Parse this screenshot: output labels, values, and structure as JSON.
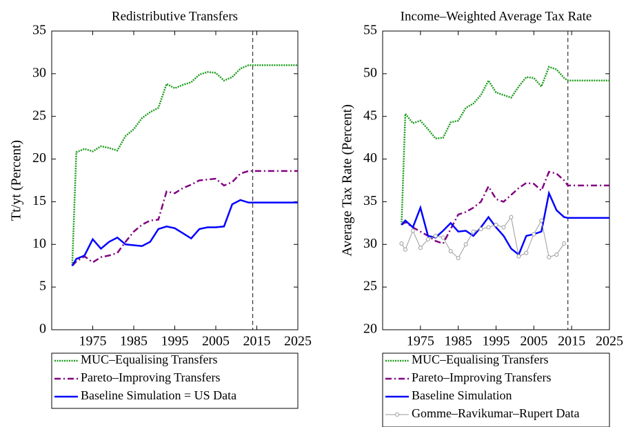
{
  "chart_data": [
    {
      "type": "line",
      "title": "Redistributive Transfers",
      "ylabel": "Tt/yt (Percent)",
      "x": [
        1970,
        1971,
        1973,
        1975,
        1977,
        1979,
        1981,
        1983,
        1985,
        1987,
        1989,
        1991,
        1993,
        1995,
        1997,
        1999,
        2001,
        2003,
        2005,
        2007,
        2009,
        2011,
        2013,
        2014,
        2025
      ],
      "xlim": [
        1965,
        2025
      ],
      "xticks": [
        1975,
        1985,
        1995,
        2005,
        2015,
        2025
      ],
      "ylim": [
        0,
        35
      ],
      "yticks": [
        0,
        5,
        10,
        15,
        20,
        25,
        30,
        35
      ],
      "vline": 2014,
      "series": [
        {
          "name": "MUC–Equalising Transfers",
          "color": "#1a9a1a",
          "style": "dotted",
          "values": [
            7.5,
            20.8,
            21.2,
            20.9,
            21.5,
            21.3,
            21.0,
            22.7,
            23.5,
            24.8,
            25.5,
            26.0,
            28.8,
            28.3,
            28.7,
            29.0,
            29.9,
            30.2,
            30.1,
            29.2,
            29.6,
            30.6,
            31.0,
            31.0,
            31.0
          ]
        },
        {
          "name": "Pareto–Improving Transfers",
          "color": "#800080",
          "style": "dashdot",
          "values": [
            7.5,
            8.0,
            8.6,
            7.9,
            8.5,
            8.7,
            9.0,
            10.3,
            11.5,
            12.3,
            12.8,
            12.9,
            16.2,
            16.0,
            16.6,
            17.0,
            17.5,
            17.6,
            17.7,
            16.9,
            17.3,
            18.3,
            18.6,
            18.6,
            18.6
          ]
        },
        {
          "name": "Baseline Simulation = US Data",
          "color": "#0000ff",
          "style": "solid",
          "values": [
            7.5,
            8.3,
            8.7,
            10.6,
            9.5,
            10.3,
            10.8,
            10.0,
            9.9,
            9.8,
            10.3,
            11.8,
            12.1,
            11.9,
            11.3,
            10.7,
            11.8,
            12.0,
            12.0,
            12.1,
            14.7,
            15.2,
            14.9,
            14.9,
            14.9
          ]
        }
      ]
    },
    {
      "type": "line",
      "title": "Income–Weighted Average Tax Rate",
      "ylabel": "Average Tax Rate (Percent)",
      "x": [
        1970,
        1971,
        1973,
        1975,
        1977,
        1979,
        1981,
        1983,
        1985,
        1987,
        1989,
        1991,
        1993,
        1995,
        1997,
        1999,
        2001,
        2003,
        2005,
        2007,
        2009,
        2011,
        2013,
        2014,
        2025
      ],
      "xlim": [
        1965,
        2025
      ],
      "xticks": [
        1975,
        1985,
        1995,
        2005,
        2015,
        2025
      ],
      "ylim": [
        20,
        55
      ],
      "yticks": [
        20,
        25,
        30,
        35,
        40,
        45,
        50,
        55
      ],
      "vline": 2014,
      "series": [
        {
          "name": "MUC–Equalising Transfers",
          "color": "#1a9a1a",
          "style": "dotted",
          "values": [
            32.3,
            45.3,
            44.2,
            44.5,
            43.5,
            42.4,
            42.5,
            44.3,
            44.5,
            46.0,
            46.5,
            47.5,
            49.2,
            47.8,
            47.5,
            47.2,
            48.5,
            49.6,
            49.5,
            48.5,
            50.8,
            50.5,
            49.5,
            49.2,
            49.2
          ]
        },
        {
          "name": "Pareto–Improving Transfers",
          "color": "#800080",
          "style": "dashdot",
          "values": [
            32.3,
            32.6,
            32.0,
            31.5,
            31.0,
            30.4,
            30.1,
            31.8,
            33.5,
            33.8,
            34.3,
            35.0,
            36.8,
            35.3,
            35.0,
            35.8,
            36.6,
            37.2,
            37.1,
            36.3,
            38.5,
            38.3,
            37.5,
            36.9,
            36.9
          ]
        },
        {
          "name": "Baseline Simulation",
          "color": "#0000ff",
          "style": "solid",
          "values": [
            32.3,
            32.8,
            32.0,
            34.3,
            31.0,
            30.8,
            31.6,
            32.5,
            31.5,
            31.6,
            31.0,
            32.0,
            33.2,
            32.0,
            31.0,
            29.5,
            28.8,
            31.0,
            31.2,
            31.5,
            36.0,
            34.0,
            33.2,
            33.1,
            33.1
          ]
        },
        {
          "name": "Gomme–Ravikumar–Rupert Data",
          "color": "#999999",
          "style": "marker",
          "values": [
            30.1,
            29.4,
            31.6,
            29.6,
            30.6,
            31.0,
            30.8,
            29.2,
            28.4,
            30.0,
            31.5,
            31.8,
            32.0,
            32.3,
            32.0,
            33.2,
            28.6,
            29.0,
            31.2,
            32.8,
            28.5,
            28.8,
            30.1,
            null,
            null
          ]
        }
      ]
    }
  ]
}
